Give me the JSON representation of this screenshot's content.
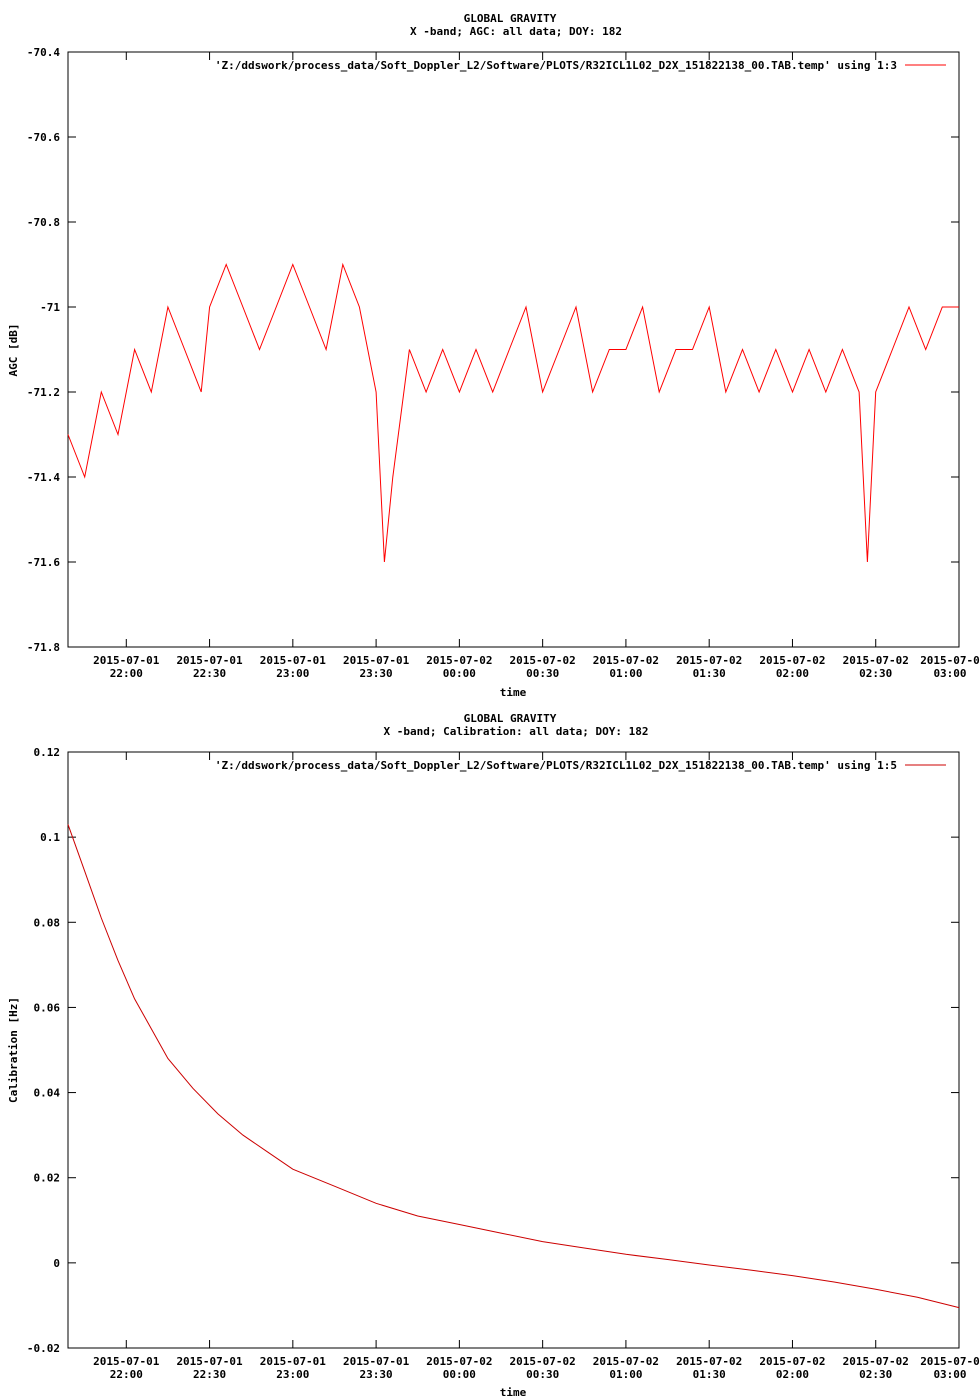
{
  "chart_data": [
    {
      "type": "line",
      "title": "GLOBAL GRAVITY",
      "subtitle": "X -band; AGC: all data; DOY: 182",
      "xlabel": "time",
      "ylabel": "AGC [dB]",
      "ylim": [
        -71.8,
        -70.4
      ],
      "yticks": [
        "-70.4",
        "-70.6",
        "-70.8",
        "-71",
        "-71.2",
        "-71.4",
        "-71.6",
        "-71.8"
      ],
      "ytick_values": [
        -70.4,
        -70.6,
        -70.8,
        -71.0,
        -71.2,
        -71.4,
        -71.6,
        -71.8
      ],
      "xlim": [
        "2015-07-01 21:39",
        "2015-07-02 03:00"
      ],
      "xticks": [
        {
          "date": "2015-07-01",
          "time": "22:00"
        },
        {
          "date": "2015-07-01",
          "time": "22:30"
        },
        {
          "date": "2015-07-01",
          "time": "23:00"
        },
        {
          "date": "2015-07-01",
          "time": "23:30"
        },
        {
          "date": "2015-07-02",
          "time": "00:00"
        },
        {
          "date": "2015-07-02",
          "time": "00:30"
        },
        {
          "date": "2015-07-02",
          "time": "01:00"
        },
        {
          "date": "2015-07-02",
          "time": "01:30"
        },
        {
          "date": "2015-07-02",
          "time": "02:00"
        },
        {
          "date": "2015-07-02",
          "time": "02:30"
        },
        {
          "date": "2015-07-0",
          "time": "03:00"
        }
      ],
      "grid": false,
      "legend_position": "top-right",
      "series": [
        {
          "name": "'Z:/ddswork/process_data/Soft_Doppler_L2/Software/PLOTS/R32ICL1L02_D2X_151822138_00.TAB.temp' using 1:3",
          "color": "#ff0000",
          "x": [
            "2015-07-01 21:39",
            "2015-07-01 21:45",
            "2015-07-01 21:51",
            "2015-07-01 21:57",
            "2015-07-01 22:03",
            "2015-07-01 22:09",
            "2015-07-01 22:15",
            "2015-07-01 22:21",
            "2015-07-01 22:27",
            "2015-07-01 22:30",
            "2015-07-01 22:36",
            "2015-07-01 22:42",
            "2015-07-01 22:48",
            "2015-07-01 22:54",
            "2015-07-01 23:00",
            "2015-07-01 23:06",
            "2015-07-01 23:12",
            "2015-07-01 23:18",
            "2015-07-01 23:24",
            "2015-07-01 23:30",
            "2015-07-01 23:33",
            "2015-07-01 23:36",
            "2015-07-01 23:42",
            "2015-07-01 23:48",
            "2015-07-01 23:54",
            "2015-07-02 00:00",
            "2015-07-02 00:06",
            "2015-07-02 00:12",
            "2015-07-02 00:18",
            "2015-07-02 00:24",
            "2015-07-02 00:30",
            "2015-07-02 00:36",
            "2015-07-02 00:42",
            "2015-07-02 00:48",
            "2015-07-02 00:54",
            "2015-07-02 01:00",
            "2015-07-02 01:06",
            "2015-07-02 01:12",
            "2015-07-02 01:18",
            "2015-07-02 01:24",
            "2015-07-02 01:30",
            "2015-07-02 01:36",
            "2015-07-02 01:42",
            "2015-07-02 01:48",
            "2015-07-02 01:54",
            "2015-07-02 02:00",
            "2015-07-02 02:06",
            "2015-07-02 02:12",
            "2015-07-02 02:18",
            "2015-07-02 02:24",
            "2015-07-02 02:27",
            "2015-07-02 02:30",
            "2015-07-02 02:36",
            "2015-07-02 02:42",
            "2015-07-02 02:48",
            "2015-07-02 02:54",
            "2015-07-02 03:00"
          ],
          "y": [
            -71.3,
            -71.4,
            -71.2,
            -71.3,
            -71.1,
            -71.2,
            -71.0,
            -71.1,
            -71.2,
            -71.0,
            -70.9,
            -71.0,
            -71.1,
            -71.0,
            -70.9,
            -71.0,
            -71.1,
            -70.9,
            -71.0,
            -71.2,
            -71.6,
            -71.4,
            -71.1,
            -71.2,
            -71.1,
            -71.2,
            -71.1,
            -71.2,
            -71.1,
            -71.0,
            -71.2,
            -71.1,
            -71.0,
            -71.2,
            -71.1,
            -71.1,
            -71.0,
            -71.2,
            -71.1,
            -71.1,
            -71.0,
            -71.2,
            -71.1,
            -71.2,
            -71.1,
            -71.2,
            -71.1,
            -71.2,
            -71.1,
            -71.2,
            -71.6,
            -71.2,
            -71.1,
            -71.0,
            -71.1,
            -71.0,
            -71.0
          ]
        }
      ]
    },
    {
      "type": "line",
      "title": "GLOBAL GRAVITY",
      "subtitle": "X -band; Calibration: all data; DOY: 182",
      "xlabel": "time",
      "ylabel": "Calibration [Hz]",
      "ylim": [
        -0.02,
        0.12
      ],
      "yticks": [
        "0.12",
        "0.1",
        "0.08",
        "0.06",
        "0.04",
        "0.02",
        "0",
        "-0.02"
      ],
      "ytick_values": [
        0.12,
        0.1,
        0.08,
        0.06,
        0.04,
        0.02,
        0.0,
        -0.02
      ],
      "xlim": [
        "2015-07-01 21:39",
        "2015-07-02 03:00"
      ],
      "xticks": [
        {
          "date": "2015-07-01",
          "time": "22:00"
        },
        {
          "date": "2015-07-01",
          "time": "22:30"
        },
        {
          "date": "2015-07-01",
          "time": "23:00"
        },
        {
          "date": "2015-07-01",
          "time": "23:30"
        },
        {
          "date": "2015-07-02",
          "time": "00:00"
        },
        {
          "date": "2015-07-02",
          "time": "00:30"
        },
        {
          "date": "2015-07-02",
          "time": "01:00"
        },
        {
          "date": "2015-07-02",
          "time": "01:30"
        },
        {
          "date": "2015-07-02",
          "time": "02:00"
        },
        {
          "date": "2015-07-02",
          "time": "02:30"
        },
        {
          "date": "2015-07-0",
          "time": "03:00"
        }
      ],
      "grid": false,
      "legend_position": "top-right",
      "series": [
        {
          "name": "'Z:/ddswork/process_data/Soft_Doppler_L2/Software/PLOTS/R32ICL1L02_D2X_151822138_00.TAB.temp' using 1:5",
          "color": "#cc0000",
          "x": [
            "2015-07-01 21:39",
            "2015-07-01 21:45",
            "2015-07-01 21:51",
            "2015-07-01 21:57",
            "2015-07-01 22:03",
            "2015-07-01 22:09",
            "2015-07-01 22:15",
            "2015-07-01 22:24",
            "2015-07-01 22:33",
            "2015-07-01 22:42",
            "2015-07-01 22:51",
            "2015-07-01 23:00",
            "2015-07-01 23:15",
            "2015-07-01 23:30",
            "2015-07-01 23:45",
            "2015-07-02 00:00",
            "2015-07-02 00:15",
            "2015-07-02 00:30",
            "2015-07-02 00:45",
            "2015-07-02 01:00",
            "2015-07-02 01:15",
            "2015-07-02 01:30",
            "2015-07-02 01:45",
            "2015-07-02 02:00",
            "2015-07-02 02:15",
            "2015-07-02 02:30",
            "2015-07-02 02:45",
            "2015-07-02 03:00"
          ],
          "y": [
            0.103,
            0.092,
            0.081,
            0.071,
            0.062,
            0.055,
            0.048,
            0.041,
            0.035,
            0.03,
            0.026,
            0.022,
            0.018,
            0.014,
            0.011,
            0.009,
            0.007,
            0.005,
            0.0035,
            0.002,
            0.0008,
            -0.0005,
            -0.0017,
            -0.003,
            -0.0045,
            -0.0062,
            -0.0081,
            -0.0105
          ]
        }
      ]
    }
  ]
}
